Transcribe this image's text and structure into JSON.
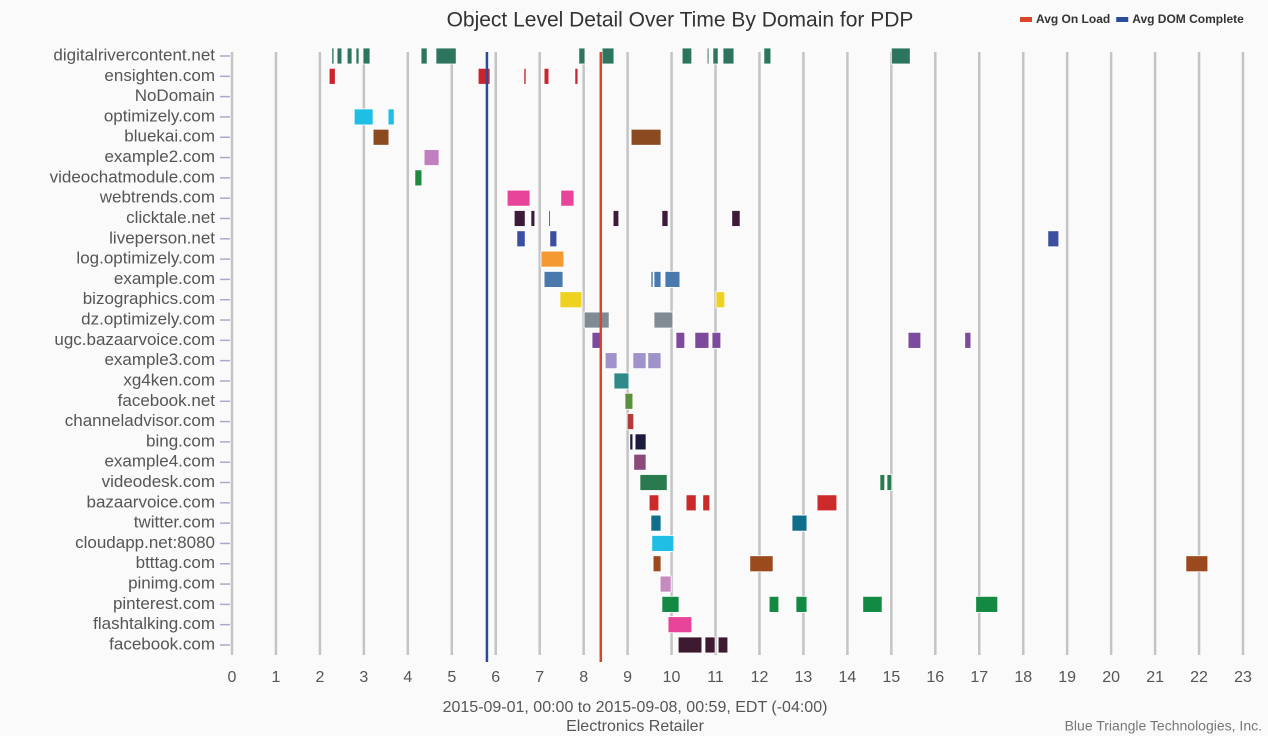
{
  "chart_data": {
    "type": "timeline",
    "title": "Object Level Detail Over Time By Domain for PDP",
    "xlabel": "2015-09-01, 00:00 to 2015-09-08, 00:59, EDT (-04:00)",
    "subtitle": "Electronics Retailer",
    "credit": "Blue Triangle Technologies, Inc.",
    "xlim": [
      0,
      23
    ],
    "xticks": [
      0,
      1,
      2,
      3,
      4,
      5,
      6,
      7,
      8,
      9,
      10,
      11,
      12,
      13,
      14,
      15,
      16,
      17,
      18,
      19,
      20,
      21,
      22,
      23
    ],
    "grid": true,
    "legend": "top-right",
    "markers": [
      {
        "name": "Avg On Load",
        "color": "#d9442b",
        "value": 8.39
      },
      {
        "name": "Avg DOM Complete",
        "color": "#2a4a9a",
        "value": 5.8
      }
    ],
    "rows": [
      {
        "name": "digitalrivercontent.net",
        "color": "#2e7560",
        "segments": [
          [
            2.27,
            2.32
          ],
          [
            2.39,
            2.5
          ],
          [
            2.62,
            2.73
          ],
          [
            2.82,
            2.89
          ],
          [
            2.98,
            3.14
          ],
          [
            4.3,
            4.44
          ],
          [
            4.64,
            5.1
          ],
          [
            7.89,
            8.03
          ],
          [
            8.42,
            8.69
          ],
          [
            10.24,
            10.46
          ],
          [
            10.81,
            10.85
          ],
          [
            10.94,
            11.06
          ],
          [
            11.17,
            11.42
          ],
          [
            12.1,
            12.26
          ],
          [
            15.0,
            15.43
          ]
        ]
      },
      {
        "name": "ensighten.com",
        "color": "#c9252c",
        "segments": [
          [
            2.21,
            2.35
          ],
          [
            5.6,
            5.87
          ],
          [
            6.64,
            6.69
          ],
          [
            7.1,
            7.21
          ],
          [
            7.8,
            7.87
          ]
        ]
      },
      {
        "name": "NoDomain",
        "color": "#888888",
        "segments": []
      },
      {
        "name": "optimizely.com",
        "color": "#1fbfe5",
        "segments": [
          [
            2.78,
            3.21
          ],
          [
            3.55,
            3.69
          ]
        ]
      },
      {
        "name": "bluekai.com",
        "color": "#8b4a20",
        "segments": [
          [
            3.21,
            3.57
          ],
          [
            9.08,
            9.76
          ]
        ]
      },
      {
        "name": "example2.com",
        "color": "#c080c0",
        "segments": [
          [
            4.37,
            4.71
          ]
        ]
      },
      {
        "name": "videochatmodule.com",
        "color": "#1e8a3e",
        "segments": [
          [
            4.16,
            4.32
          ]
        ]
      },
      {
        "name": "webtrends.com",
        "color": "#e8449a",
        "segments": [
          [
            6.26,
            6.78
          ],
          [
            7.48,
            7.78
          ]
        ]
      },
      {
        "name": "clicktale.net",
        "color": "#3d1a3a",
        "segments": [
          [
            6.42,
            6.67
          ],
          [
            6.8,
            6.89
          ],
          [
            7.21,
            7.23
          ],
          [
            8.67,
            8.8
          ],
          [
            9.78,
            9.92
          ],
          [
            11.37,
            11.56
          ]
        ]
      },
      {
        "name": "liveperson.net",
        "color": "#3b4ea0",
        "segments": [
          [
            6.48,
            6.67
          ],
          [
            7.23,
            7.39
          ],
          [
            18.56,
            18.81
          ]
        ]
      },
      {
        "name": "log.optimizely.com",
        "color": "#f59a32",
        "segments": [
          [
            7.03,
            7.55
          ]
        ]
      },
      {
        "name": "example.com",
        "color": "#4a7aad",
        "segments": [
          [
            7.1,
            7.53
          ],
          [
            9.53,
            9.58
          ],
          [
            9.6,
            9.76
          ],
          [
            9.85,
            10.19
          ]
        ]
      },
      {
        "name": "bizographics.com",
        "color": "#efd21f",
        "segments": [
          [
            7.46,
            7.96
          ],
          [
            11.01,
            11.21
          ]
        ]
      },
      {
        "name": "dz.optimizely.com",
        "color": "#7f8c96",
        "segments": [
          [
            8.01,
            8.58
          ],
          [
            9.6,
            10.03
          ]
        ]
      },
      {
        "name": "ugc.bazaarvoice.com",
        "color": "#7d4a9e",
        "segments": [
          [
            8.19,
            8.39
          ],
          [
            10.1,
            10.3
          ],
          [
            10.53,
            10.85
          ],
          [
            10.92,
            11.12
          ],
          [
            15.38,
            15.67
          ],
          [
            16.67,
            16.81
          ]
        ]
      },
      {
        "name": "example3.com",
        "color": "#9f93c9",
        "segments": [
          [
            8.49,
            8.76
          ],
          [
            9.12,
            9.42
          ],
          [
            9.46,
            9.76
          ]
        ]
      },
      {
        "name": "xg4ken.com",
        "color": "#2f8a8a",
        "segments": [
          [
            8.69,
            9.03
          ]
        ]
      },
      {
        "name": "facebook.net",
        "color": "#5a8f3c",
        "segments": [
          [
            8.94,
            9.12
          ]
        ]
      },
      {
        "name": "channeladvisor.com",
        "color": "#b23a3a",
        "segments": [
          [
            8.99,
            9.14
          ]
        ]
      },
      {
        "name": "bing.com",
        "color": "#1c1a3d",
        "segments": [
          [
            9.05,
            9.12
          ],
          [
            9.17,
            9.42
          ]
        ]
      },
      {
        "name": "example4.com",
        "color": "#8a4a7a",
        "segments": [
          [
            9.14,
            9.42
          ]
        ]
      },
      {
        "name": "videodesk.com",
        "color": "#2a7a50",
        "segments": [
          [
            9.28,
            9.9
          ],
          [
            14.74,
            14.85
          ],
          [
            14.9,
            15.01
          ]
        ]
      },
      {
        "name": "bazaarvoice.com",
        "color": "#cc2a2a",
        "segments": [
          [
            9.49,
            9.71
          ],
          [
            10.33,
            10.56
          ],
          [
            10.71,
            10.87
          ],
          [
            13.31,
            13.76
          ]
        ]
      },
      {
        "name": "twitter.com",
        "color": "#0e6e8c",
        "segments": [
          [
            9.53,
            9.76
          ],
          [
            12.74,
            13.08
          ]
        ]
      },
      {
        "name": "cloudapp.net:8080",
        "color": "#1fbfe5",
        "segments": [
          [
            9.55,
            10.05
          ]
        ]
      },
      {
        "name": "btttag.com",
        "color": "#9b4a1e",
        "segments": [
          [
            9.58,
            9.76
          ],
          [
            11.78,
            12.31
          ],
          [
            21.7,
            22.2
          ]
        ]
      },
      {
        "name": "pinimg.com",
        "color": "#c68ac0",
        "segments": [
          [
            9.74,
            9.99
          ]
        ]
      },
      {
        "name": "pinterest.com",
        "color": "#128a44",
        "segments": [
          [
            9.78,
            10.17
          ],
          [
            12.22,
            12.44
          ],
          [
            12.83,
            13.08
          ],
          [
            14.35,
            14.79
          ],
          [
            16.92,
            17.42
          ]
        ]
      },
      {
        "name": "flashtalking.com",
        "color": "#e8449a",
        "segments": [
          [
            9.92,
            10.46
          ]
        ]
      },
      {
        "name": "facebook.com",
        "color": "#3d1a30",
        "segments": [
          [
            10.15,
            10.69
          ],
          [
            10.76,
            10.99
          ],
          [
            11.06,
            11.28
          ]
        ]
      }
    ]
  }
}
